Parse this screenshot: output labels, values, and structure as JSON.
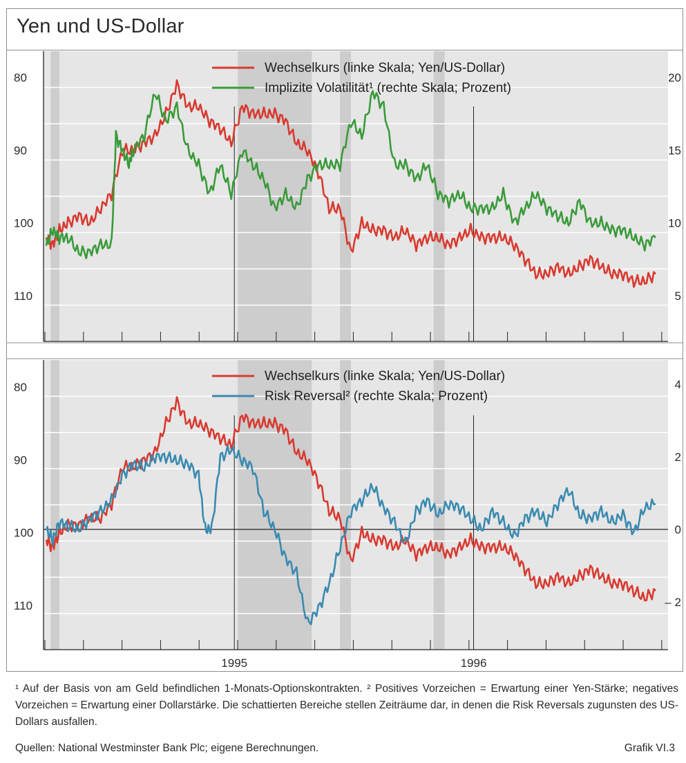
{
  "title": "Yen und US-Dollar",
  "colors": {
    "exchange": "#d83a30",
    "volatility": "#3a9a3a",
    "risk_reversal": "#3a8ab0",
    "shade": "#c8c8c8",
    "panel_bg": "#e6e6e6"
  },
  "chart_data": [
    {
      "type": "line",
      "panel": "top",
      "x_range": [
        "1994-01",
        "1996-05"
      ],
      "x_ticks": [
        "1995",
        "1996"
      ],
      "left_axis": {
        "ticks": [
          "80",
          "90",
          "100",
          "110"
        ],
        "values": [
          80,
          90,
          100,
          110
        ],
        "range": [
          116,
          78
        ],
        "inverted": true
      },
      "right_axis": {
        "ticks": [
          "20",
          "15",
          "10",
          "5"
        ],
        "values": [
          20,
          15,
          10,
          5
        ],
        "range": [
          2,
          21
        ]
      },
      "legend": [
        "Wechselkurs (linke Skala; Yen/US-Dollar)",
        "Implizite Volatilität¹ (rechte Skala; Prozent)"
      ],
      "series": [
        {
          "name": "Wechselkurs (linke Skala; Yen/US-Dollar)",
          "axis": "left",
          "x": [
            0,
            0.3,
            0.6,
            1.0,
            1.5,
            2.0,
            2.5,
            3.0,
            3.5,
            4.0,
            4.5,
            5.0,
            5.5,
            6.0,
            6.5,
            7.0,
            7.5,
            8.0,
            8.5,
            9.0,
            9.5,
            10.0,
            10.5,
            11.0,
            11.5,
            12.0,
            12.5,
            13.0,
            13.5,
            14.0,
            14.5,
            15.0,
            15.5,
            16.0,
            16.5,
            17.0,
            17.5,
            18.0,
            18.5,
            19.0,
            19.5,
            20.0,
            20.5,
            21.0,
            21.5,
            22.0,
            22.5,
            23.0,
            23.5,
            24.0,
            24.5,
            25.0,
            25.5,
            26.0,
            26.5,
            27.0,
            27.5,
            28.0
          ],
          "values": [
            102,
            103,
            101,
            100,
            99,
            100,
            98,
            96,
            90,
            90,
            89,
            88,
            85,
            81,
            84,
            84,
            86,
            87,
            89,
            84,
            85,
            85,
            85,
            86,
            89,
            90,
            93,
            98,
            98,
            104,
            100,
            101,
            101,
            102,
            101,
            103,
            102,
            102,
            103,
            102,
            101,
            102,
            102,
            102,
            103,
            105,
            107,
            107,
            106,
            107,
            106,
            105,
            106,
            107,
            107,
            108,
            108,
            107
          ]
        },
        {
          "name": "Implizite Volatilität¹ (rechte Skala; Prozent)",
          "axis": "right",
          "x": [
            0,
            0.3,
            0.6,
            1.0,
            1.5,
            2.0,
            2.5,
            3.0,
            3.2,
            3.5,
            3.8,
            4.0,
            4.5,
            5.0,
            5.5,
            6.0,
            6.5,
            7.0,
            7.5,
            8.0,
            8.5,
            9.0,
            9.5,
            10.0,
            10.5,
            11.0,
            11.5,
            12.0,
            12.5,
            13.0,
            13.5,
            14.0,
            14.5,
            15.0,
            15.5,
            16.0,
            16.5,
            17.0,
            17.5,
            18.0,
            18.5,
            19.0,
            19.5,
            20.0,
            20.5,
            21.0,
            21.5,
            22.0,
            22.5,
            23.0,
            23.5,
            24.0,
            24.5,
            25.0,
            25.5,
            26.0,
            26.5,
            27.0,
            27.5,
            28.0
          ],
          "values": [
            8.5,
            9.5,
            9,
            9,
            8,
            8,
            8.5,
            8.5,
            16,
            15,
            14,
            15,
            16,
            19,
            17,
            18,
            15,
            14,
            12,
            14,
            12,
            15,
            14,
            13,
            11,
            12,
            11,
            13,
            14,
            14,
            14,
            17,
            16,
            19,
            18,
            14,
            14,
            13,
            14,
            12,
            11.5,
            12,
            11,
            11,
            11,
            12,
            10,
            11,
            12,
            11,
            10.5,
            10,
            11.5,
            10,
            10,
            9.5,
            9.5,
            9,
            8.5,
            9
          ]
        }
      ],
      "shaded_periods": [
        [
          0.2,
          0.6
        ],
        [
          8.8,
          12.2
        ],
        [
          13.5,
          14.0
        ],
        [
          17.8,
          18.3
        ]
      ]
    },
    {
      "type": "line",
      "panel": "bottom",
      "x_range": [
        "1994-01",
        "1996-05"
      ],
      "x_ticks": [
        "1995",
        "1996"
      ],
      "left_axis": {
        "ticks": [
          "80",
          "90",
          "100",
          "110"
        ],
        "values": [
          80,
          90,
          100,
          110
        ],
        "range": [
          116,
          78
        ],
        "inverted": true
      },
      "right_axis": {
        "ticks": [
          "4",
          "2",
          "0",
          "– 2"
        ],
        "values": [
          4,
          2,
          0,
          -2
        ],
        "range": [
          -3,
          4.5
        ]
      },
      "legend": [
        "Wechselkurs (linke Skala; Yen/US-Dollar)",
        "Risk Reversal² (rechte Skala; Prozent)"
      ],
      "series": [
        {
          "name": "Wechselkurs (linke Skala; Yen/US-Dollar)",
          "axis": "left",
          "x": [
            0,
            0.3,
            0.6,
            1.0,
            1.5,
            2.0,
            2.5,
            3.0,
            3.5,
            4.0,
            4.5,
            5.0,
            5.5,
            6.0,
            6.5,
            7.0,
            7.5,
            8.0,
            8.5,
            9.0,
            9.5,
            10.0,
            10.5,
            11.0,
            11.5,
            12.0,
            12.5,
            13.0,
            13.5,
            14.0,
            14.5,
            15.0,
            15.5,
            16.0,
            16.5,
            17.0,
            17.5,
            18.0,
            18.5,
            19.0,
            19.5,
            20.0,
            20.5,
            21.0,
            21.5,
            22.0,
            22.5,
            23.0,
            23.5,
            24.0,
            24.5,
            25.0,
            25.5,
            26.0,
            26.5,
            27.0,
            27.5,
            28.0
          ],
          "values": [
            101,
            102,
            100,
            99,
            99,
            98,
            98,
            96,
            91,
            91,
            90,
            89,
            85,
            82,
            85,
            85,
            86,
            87,
            88,
            84,
            85,
            85,
            85,
            86,
            89,
            90,
            93,
            97,
            98,
            104,
            100,
            101,
            101,
            102,
            101,
            103,
            102,
            102,
            103,
            102,
            101,
            102,
            102,
            102,
            103,
            105,
            107,
            107,
            106,
            107,
            106,
            105,
            106,
            107,
            107,
            108,
            109,
            108
          ]
        },
        {
          "name": "Risk Reversal² (rechte Skala; Prozent)",
          "axis": "right",
          "x": [
            0,
            0.3,
            0.6,
            1.0,
            1.5,
            2.0,
            2.5,
            3.0,
            3.5,
            4.0,
            4.5,
            5.0,
            5.5,
            6.0,
            6.5,
            7.0,
            7.3,
            7.6,
            8.0,
            8.5,
            9.0,
            9.5,
            10.0,
            10.5,
            11.0,
            11.5,
            12.0,
            12.5,
            13.0,
            13.5,
            14.0,
            14.5,
            15.0,
            15.5,
            16.0,
            16.5,
            17.0,
            17.5,
            18.0,
            18.5,
            19.0,
            19.5,
            20.0,
            20.5,
            21.0,
            21.5,
            22.0,
            22.5,
            23.0,
            23.5,
            24.0,
            24.5,
            25.0,
            25.5,
            26.0,
            26.5,
            27.0,
            27.5,
            28.0
          ],
          "values": [
            0,
            -0.3,
            0.2,
            0.1,
            0,
            0.3,
            0.5,
            0.8,
            1.5,
            1.8,
            1.7,
            2.0,
            2.0,
            1.9,
            1.8,
            1.5,
            0,
            0,
            2.0,
            2.2,
            1.9,
            1.7,
            0.5,
            0,
            -0.8,
            -1.2,
            -2.6,
            -2.2,
            -1.5,
            -0.5,
            0.5,
            0.8,
            1.2,
            0.6,
            0.2,
            -0.4,
            0.5,
            0.8,
            0.4,
            0.7,
            0.6,
            0.3,
            0.0,
            0.5,
            0.2,
            -0.2,
            0.3,
            0.5,
            0.2,
            0.7,
            1.1,
            0.4,
            0.3,
            0.5,
            0.2,
            0.4,
            -0.1,
            0.6,
            0.7
          ]
        }
      ],
      "shaded_periods": [
        [
          0.2,
          0.6
        ],
        [
          8.8,
          12.2
        ],
        [
          13.5,
          14.0
        ],
        [
          17.8,
          18.3
        ]
      ]
    }
  ],
  "footnote": "¹ Auf der Basis von am Geld befindlichen 1-Monats-Optionskontrakten.   ² Positives Vorzeichen = Erwartung einer Yen-Stärke; negatives Vorzeichen = Erwartung einer Dollarstärke. Die schattierten Bereiche stellen Zeiträume dar, in denen die Risk Reversals zugunsten des US-Dollars ausfallen.",
  "sources": "Quellen: National Westminster Bank Plc; eigene Berechnungen.",
  "grafik_label": "Grafik VI.3"
}
